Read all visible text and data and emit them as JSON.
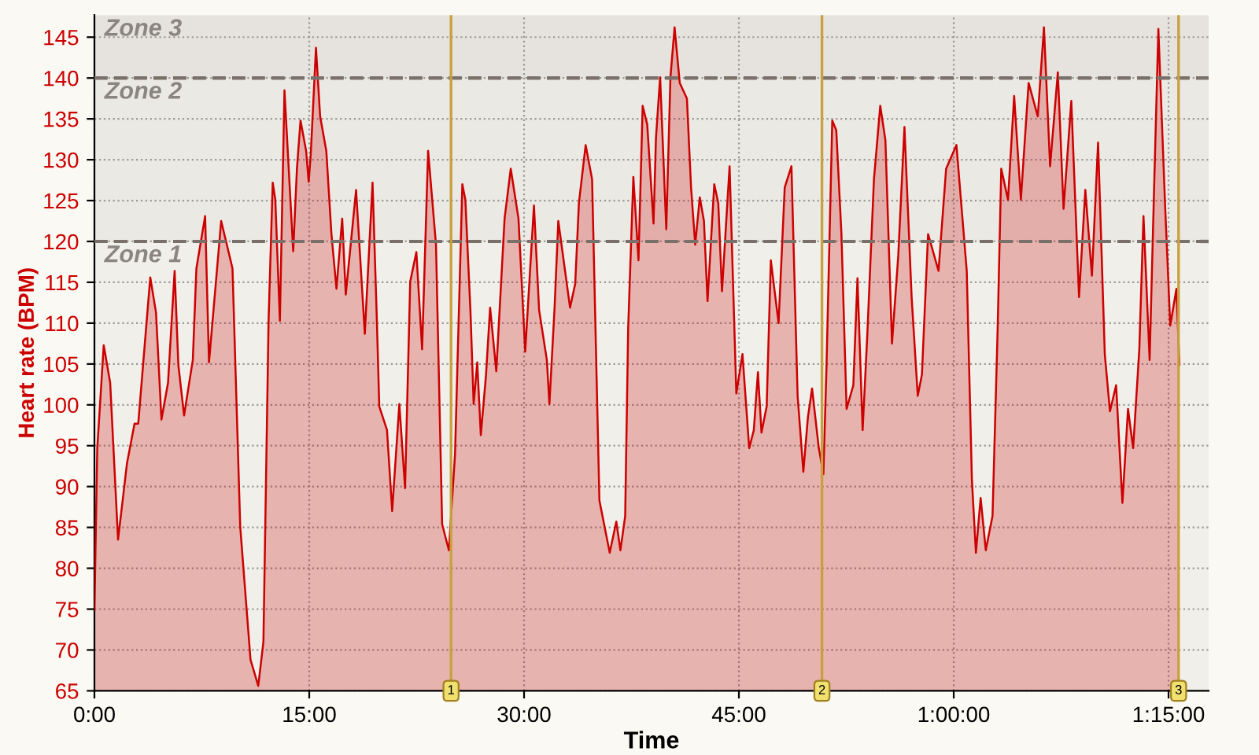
{
  "chart_data": {
    "type": "area",
    "xlabel": "Time",
    "ylabel": "Heart rate (BPM)",
    "xlim": [
      0,
      77.8
    ],
    "ylim": [
      65,
      147.7
    ],
    "xticks": [
      {
        "value": 0,
        "label": "0:00"
      },
      {
        "value": 15,
        "label": "15:00"
      },
      {
        "value": 30,
        "label": "30:00"
      },
      {
        "value": 45,
        "label": "45:00"
      },
      {
        "value": 60,
        "label": "1:00:00"
      },
      {
        "value": 75,
        "label": "1:15:00"
      }
    ],
    "yticks": [
      65,
      70,
      75,
      80,
      85,
      90,
      95,
      100,
      105,
      110,
      115,
      120,
      125,
      130,
      135,
      140,
      145
    ],
    "grid": true,
    "legend": false,
    "series": [
      {
        "color": "#cc0000",
        "x": [
          0,
          0.2,
          0.65,
          1.1,
          1.65,
          2.27,
          2.8,
          3.06,
          3.9,
          4.3,
          4.68,
          5.14,
          5.6,
          5.86,
          6.26,
          6.87,
          7.12,
          7.73,
          8.0,
          8.85,
          9.64,
          10.18,
          10.9,
          11.44,
          11.8,
          12.16,
          12.45,
          12.63,
          12.95,
          13.27,
          13.88,
          14.14,
          14.39,
          14.78,
          14.96,
          15.1,
          15.47,
          15.76,
          16.19,
          16.55,
          16.9,
          17.3,
          17.55,
          18.27,
          18.88,
          19.42,
          19.71,
          19.89,
          20.43,
          20.79,
          21.29,
          21.69,
          22.05,
          22.48,
          22.88,
          23.3,
          23.85,
          24.28,
          24.75,
          25.18,
          25.69,
          25.9,
          26.26,
          26.48,
          26.73,
          26.98,
          27.34,
          27.63,
          28.06,
          28.64,
          29.07,
          29.61,
          30.08,
          30.69,
          31.05,
          31.59,
          31.77,
          32.13,
          32.39,
          33.21,
          33.57,
          33.83,
          34.3,
          34.75,
          35.26,
          35.98,
          36.44,
          36.73,
          37.06,
          37.27,
          37.63,
          37.99,
          38.28,
          38.6,
          39.04,
          39.21,
          39.5,
          39.93,
          40.22,
          40.51,
          40.87,
          41.37,
          41.66,
          41.95,
          42.27,
          42.56,
          42.81,
          43.28,
          43.56,
          43.82,
          44.35,
          44.82,
          45.25,
          45.72,
          46.04,
          46.33,
          46.58,
          46.94,
          47.23,
          47.77,
          48.2,
          48.67,
          49.1,
          49.5,
          49.82,
          50.11,
          50.58,
          50.9,
          51.12,
          51.52,
          51.8,
          52.16,
          52.52,
          52.99,
          53.28,
          53.64,
          53.97,
          54.43,
          54.87,
          55.23,
          55.69,
          56.13,
          56.56,
          57.06,
          57.49,
          57.78,
          58.21,
          58.94,
          59.47,
          60.19,
          60.91,
          61.27,
          61.55,
          61.88,
          62.24,
          62.71,
          63.07,
          63.32,
          63.79,
          64.22,
          64.69,
          65.23,
          65.87,
          66.3,
          66.73,
          67.27,
          67.67,
          68.21,
          68.75,
          69.19,
          69.65,
          70.08,
          70.55,
          70.91,
          71.34,
          71.78,
          72.17,
          72.53,
          72.96,
          73.25,
          73.68,
          73.96,
          74.29,
          74.76,
          75.12,
          75.55,
          75.76
        ],
        "values": [
          74.9,
          94.7,
          107.3,
          102.7,
          83.5,
          92.8,
          97.7,
          97.7,
          115.6,
          111.3,
          98.2,
          102.7,
          116.4,
          104.9,
          98.7,
          105.5,
          116.7,
          123.1,
          105.2,
          122.5,
          116.7,
          85.1,
          68.8,
          65.6,
          71.0,
          110.3,
          127.2,
          125.1,
          110.3,
          138.5,
          118.8,
          128.9,
          134.8,
          131.1,
          127.3,
          130.5,
          143.7,
          135.3,
          131.1,
          120.9,
          114.2,
          122.8,
          113.5,
          126.3,
          108.7,
          127.2,
          111.0,
          99.8,
          96.9,
          87.0,
          100.1,
          89.8,
          115.1,
          118.7,
          106.8,
          131.1,
          119.6,
          85.4,
          82.2,
          94.0,
          127.0,
          125.1,
          111.3,
          100.1,
          105.2,
          96.3,
          103.6,
          111.9,
          104.1,
          122.8,
          128.9,
          122.8,
          106.5,
          124.4,
          111.6,
          105.5,
          100.1,
          111.9,
          122.5,
          111.9,
          114.8,
          124.7,
          131.8,
          127.6,
          88.3,
          81.9,
          85.7,
          82.2,
          86.4,
          109.4,
          127.9,
          117.7,
          136.6,
          134.3,
          122.2,
          132.7,
          140.1,
          121.5,
          140.1,
          146.2,
          139.4,
          137.5,
          126.6,
          119.6,
          125.4,
          122.5,
          112.7,
          127.0,
          124.7,
          113.9,
          129.2,
          101.4,
          106.2,
          94.7,
          96.9,
          104.0,
          96.6,
          99.8,
          117.7,
          110.0,
          126.6,
          129.2,
          101.1,
          91.8,
          98.5,
          102.0,
          94.7,
          91.5,
          104.9,
          134.8,
          133.6,
          120.9,
          99.5,
          102.4,
          115.5,
          96.9,
          108.7,
          127.6,
          136.6,
          132.4,
          107.5,
          118.3,
          134.0,
          113.2,
          101.1,
          103.7,
          120.9,
          116.4,
          128.9,
          131.8,
          116.4,
          90.8,
          81.9,
          88.6,
          82.2,
          86.4,
          109.4,
          128.9,
          125.1,
          137.8,
          125.1,
          139.4,
          135.3,
          146.2,
          129.2,
          140.7,
          124.0,
          137.2,
          113.2,
          126.3,
          115.8,
          132.1,
          106.2,
          99.2,
          102.4,
          88.0,
          99.5,
          94.7,
          106.8,
          123.1,
          105.5,
          124.4,
          146.0,
          124.4,
          109.7,
          114.2,
          104.9
        ]
      }
    ],
    "bands": [
      {
        "axis": "y",
        "from": 65,
        "to": 120,
        "label": "Zone 1",
        "color": "#b0aaa6"
      },
      {
        "axis": "y",
        "from": 120,
        "to": 140,
        "label": "Zone 2",
        "color": "#b0aaa6"
      },
      {
        "axis": "y",
        "from": 140,
        "to": 147.7,
        "label": "Zone 3",
        "color": "#b0aaa6"
      }
    ],
    "ref_lines": [
      {
        "axis": "x",
        "value": 24.9,
        "label": null,
        "color": "#c8a040",
        "line_style": "solid"
      },
      {
        "axis": "x",
        "value": 50.8,
        "label": null,
        "color": "#c8a040",
        "line_style": "solid"
      },
      {
        "axis": "x",
        "value": 75.7,
        "label": null,
        "color": "#c8a040",
        "line_style": "solid"
      }
    ],
    "annotations": [
      {
        "text": "1",
        "x": 24.9,
        "y": 65
      },
      {
        "text": "2",
        "x": 50.8,
        "y": 65
      },
      {
        "text": "3",
        "x": 75.7,
        "y": 65
      }
    ]
  }
}
